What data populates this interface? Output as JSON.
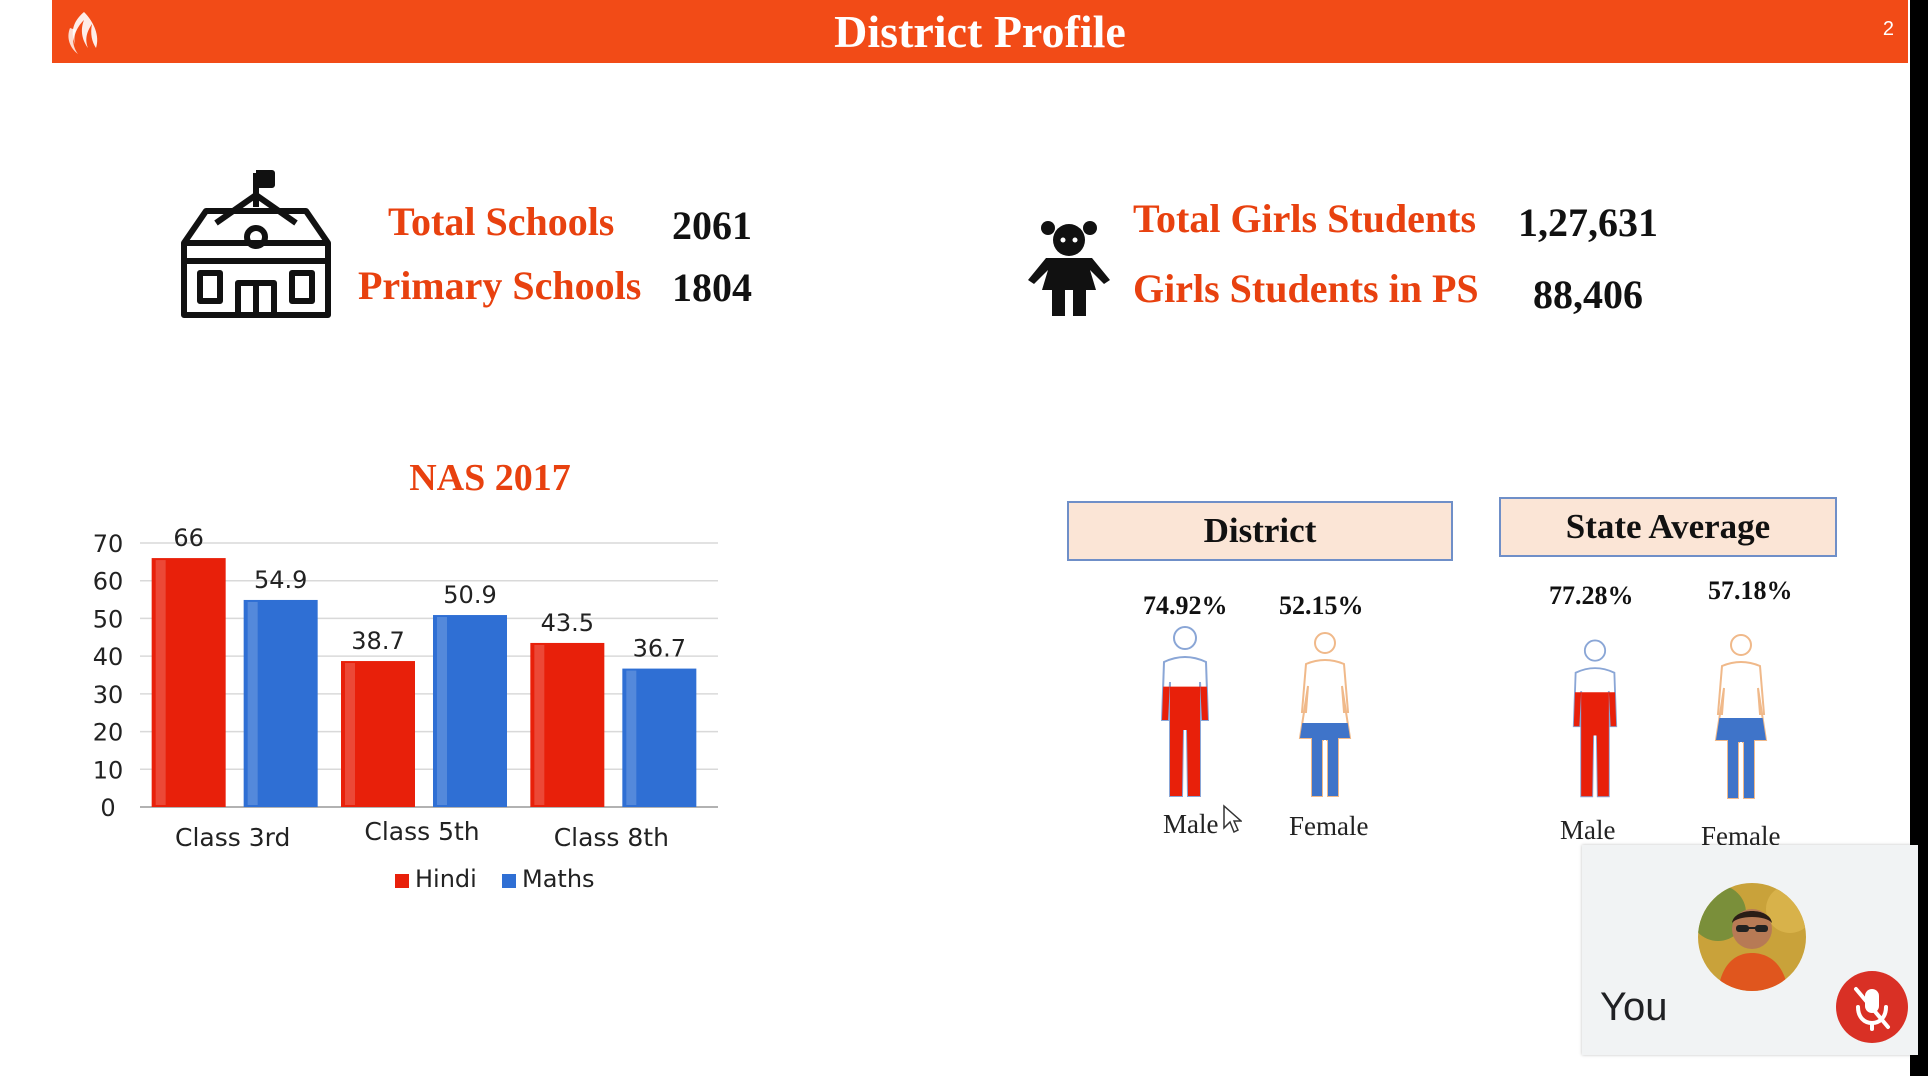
{
  "header": {
    "title": "District Profile",
    "slide_number": "2"
  },
  "stats_left": [
    {
      "label": "Total Schools",
      "value": "2061"
    },
    {
      "label": "Primary Schools",
      "value": "1804"
    }
  ],
  "stats_right": [
    {
      "label": "Total Girls Students",
      "value": "1,27,631"
    },
    {
      "label": "Girls Students in PS",
      "value": "88,406"
    }
  ],
  "icons": {
    "school": "school-building-icon",
    "girl": "girl-student-icon",
    "logo": "flame-logo-icon"
  },
  "chart_data": {
    "type": "bar",
    "title": "NAS 2017",
    "categories": [
      "Class 3rd",
      "Class 5th",
      "Class 8th"
    ],
    "series": [
      {
        "name": "Hindi",
        "values": [
          66,
          38.7,
          43.5
        ],
        "color": "#e8200a"
      },
      {
        "name": "Maths",
        "values": [
          54.9,
          50.9,
          36.7
        ],
        "color": "#2f6fd4"
      }
    ],
    "ylim": [
      0,
      70
    ],
    "yticks": [
      0,
      10,
      20,
      30,
      40,
      50,
      60,
      70
    ],
    "grid": true,
    "legend": "bottom"
  },
  "district": {
    "title": "District",
    "male": {
      "percent": "74.92%",
      "label": "Male",
      "fill": 0.7492
    },
    "female": {
      "percent": "52.15%",
      "label": "Female",
      "fill": 0.5215
    }
  },
  "state_average": {
    "title": "State Average",
    "male": {
      "percent": "77.28%",
      "label": "Male",
      "fill": 0.7728
    },
    "female": {
      "percent": "57.18%",
      "label": "Female",
      "fill": 0.5718
    }
  },
  "colors": {
    "header": "#f24b17",
    "accent_text": "#e8410f",
    "male_fill": "#e8200a",
    "female_fill": "#3f74c9"
  },
  "video_tile": {
    "name": "You",
    "mic_icon": "mic-off-icon"
  }
}
